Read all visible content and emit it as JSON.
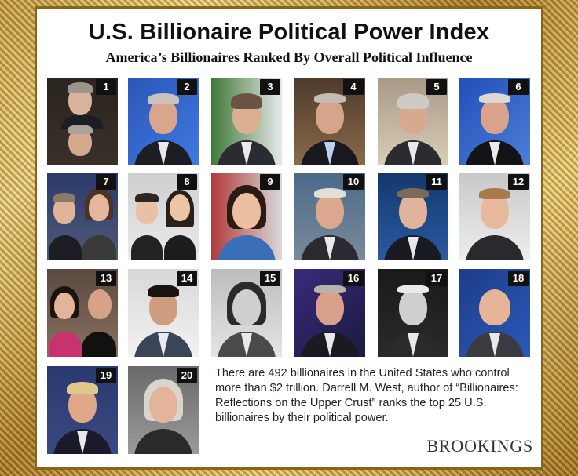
{
  "title": "U.S. Billionaire Political Power Index",
  "subtitle": "America’s Billionaires Ranked By Overall Political Influence",
  "description": "There are 492 billionaires in the United States who control more than $2 trillion. Darrell M. West, author of “Billionaires: Reflections on the Upper Crust” ranks the top 25 U.S. billionaires by their political power.",
  "brand": "BROOKINGS",
  "ranks": [
    "1",
    "2",
    "3",
    "4",
    "5",
    "6",
    "7",
    "8",
    "9",
    "10",
    "11",
    "12",
    "13",
    "14",
    "15",
    "16",
    "17",
    "18",
    "19",
    "20"
  ]
}
